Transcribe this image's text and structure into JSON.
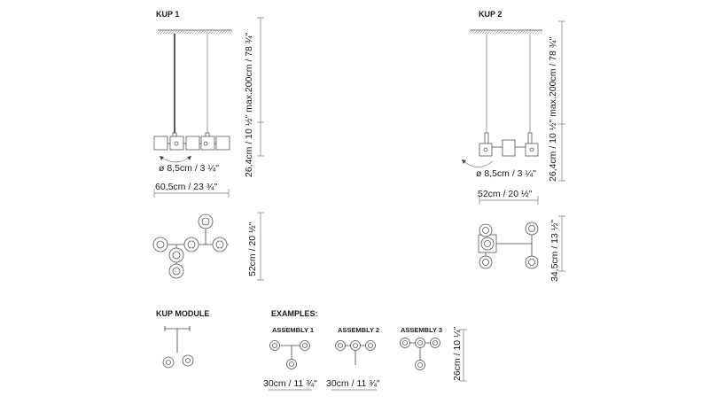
{
  "kup1": {
    "title": "KUP 1",
    "height_dim": "26,4cm / 10 ½\"  max.200cm / 78 ¾\"",
    "diameter_dim": "ø 8,5cm / 3 ¼\"",
    "width_dim": "60,5cm / 23 ¾\"",
    "depth_dim": "52cm / 20 ½\""
  },
  "kup2": {
    "title": "KUP 2",
    "height_dim": "26,4cm / 10 ½\"  max.200cm / 78 ¾\"",
    "diameter_dim": "ø 8,5cm / 3 ¼\"",
    "width_dim": "52cm / 20 ½\"",
    "depth_dim": "34,5cm / 13 ½\""
  },
  "module": {
    "title": "KUP MODULE"
  },
  "examples": {
    "title": "EXAMPLES:",
    "assembly1": "ASSEMBLY 1",
    "assembly2": "ASSEMBLY 2",
    "assembly3": "ASSEMBLY 3",
    "width_dim_1": "30cm / 11 ¾\"",
    "width_dim_2": "30cm / 11 ¾\"",
    "height_dim": "26cm / 10 ¼\""
  },
  "colors": {
    "line": "#444444",
    "text": "#1a1a1a"
  },
  "icons": [
    "ceiling-canopy-icon",
    "lamp-cup-icon",
    "rotation-arrow-icon"
  ]
}
